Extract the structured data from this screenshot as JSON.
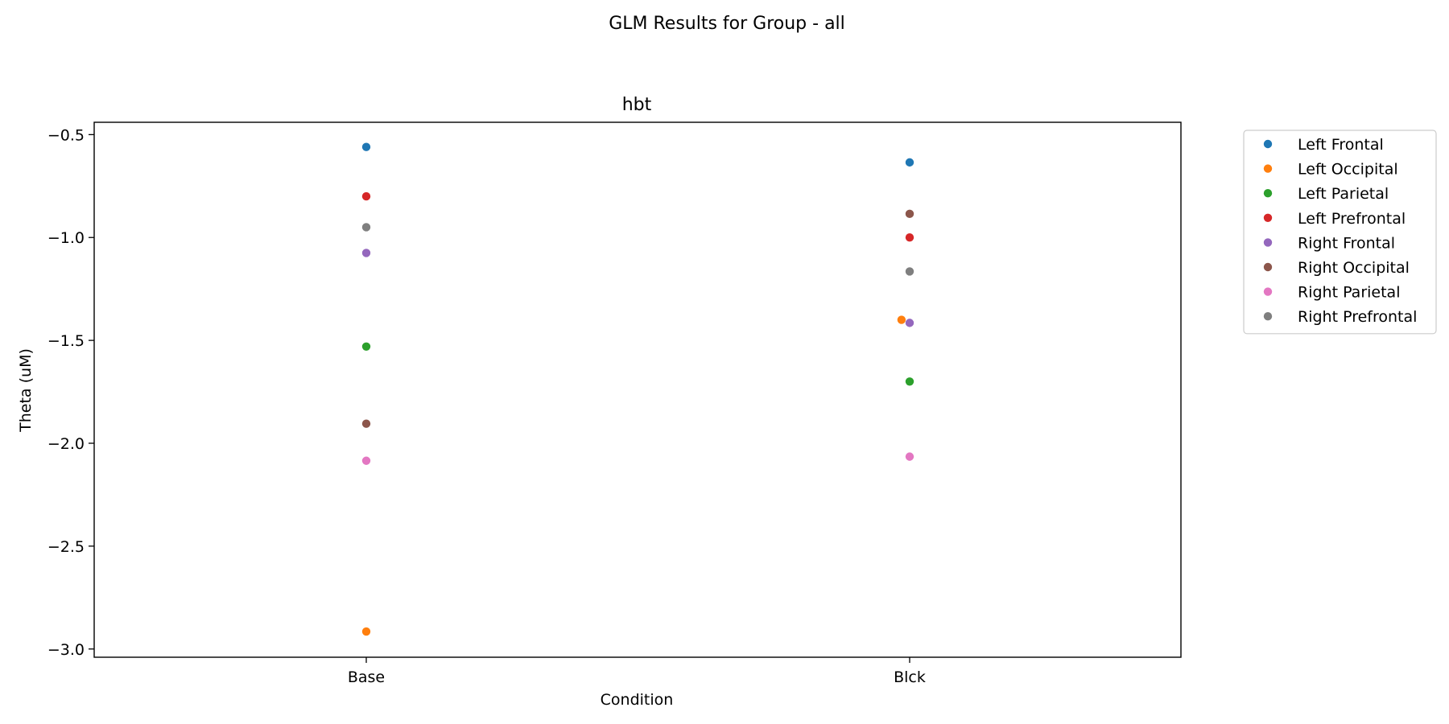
{
  "figure": {
    "suptitle": "GLM Results for Group - all"
  },
  "chart_data": {
    "type": "scatter",
    "title": "hbt",
    "xlabel": "Condition",
    "ylabel": "Theta (uM)",
    "categories": [
      "Base",
      "Blck"
    ],
    "ylim": [
      -3.04,
      -0.44
    ],
    "yticks": [
      -0.5,
      -1.0,
      -1.5,
      -2.0,
      -2.5,
      -3.0
    ],
    "ytick_labels": [
      "−0.5",
      "−1.0",
      "−1.5",
      "−2.0",
      "−2.5",
      "−3.0"
    ],
    "grid": false,
    "legend_position": "outside-right",
    "series": [
      {
        "name": "Left Frontal",
        "color": "#1f77b4",
        "values": [
          -0.56,
          -0.635
        ]
      },
      {
        "name": "Left Occipital",
        "color": "#ff7f0e",
        "values": [
          -2.915,
          -1.4
        ],
        "x_offset": [
          0,
          -0.015
        ]
      },
      {
        "name": "Left Parietal",
        "color": "#2ca02c",
        "values": [
          -1.53,
          -1.7
        ]
      },
      {
        "name": "Left Prefrontal",
        "color": "#d62728",
        "values": [
          -0.8,
          -1.0
        ]
      },
      {
        "name": "Right Frontal",
        "color": "#9467bd",
        "values": [
          -1.075,
          -1.415
        ]
      },
      {
        "name": "Right Occipital",
        "color": "#8c564b",
        "values": [
          -1.905,
          -0.885
        ]
      },
      {
        "name": "Right Parietal",
        "color": "#e377c2",
        "values": [
          -2.085,
          -2.065
        ]
      },
      {
        "name": "Right Prefrontal",
        "color": "#7f7f7f",
        "values": [
          -0.95,
          -1.165
        ]
      }
    ]
  }
}
